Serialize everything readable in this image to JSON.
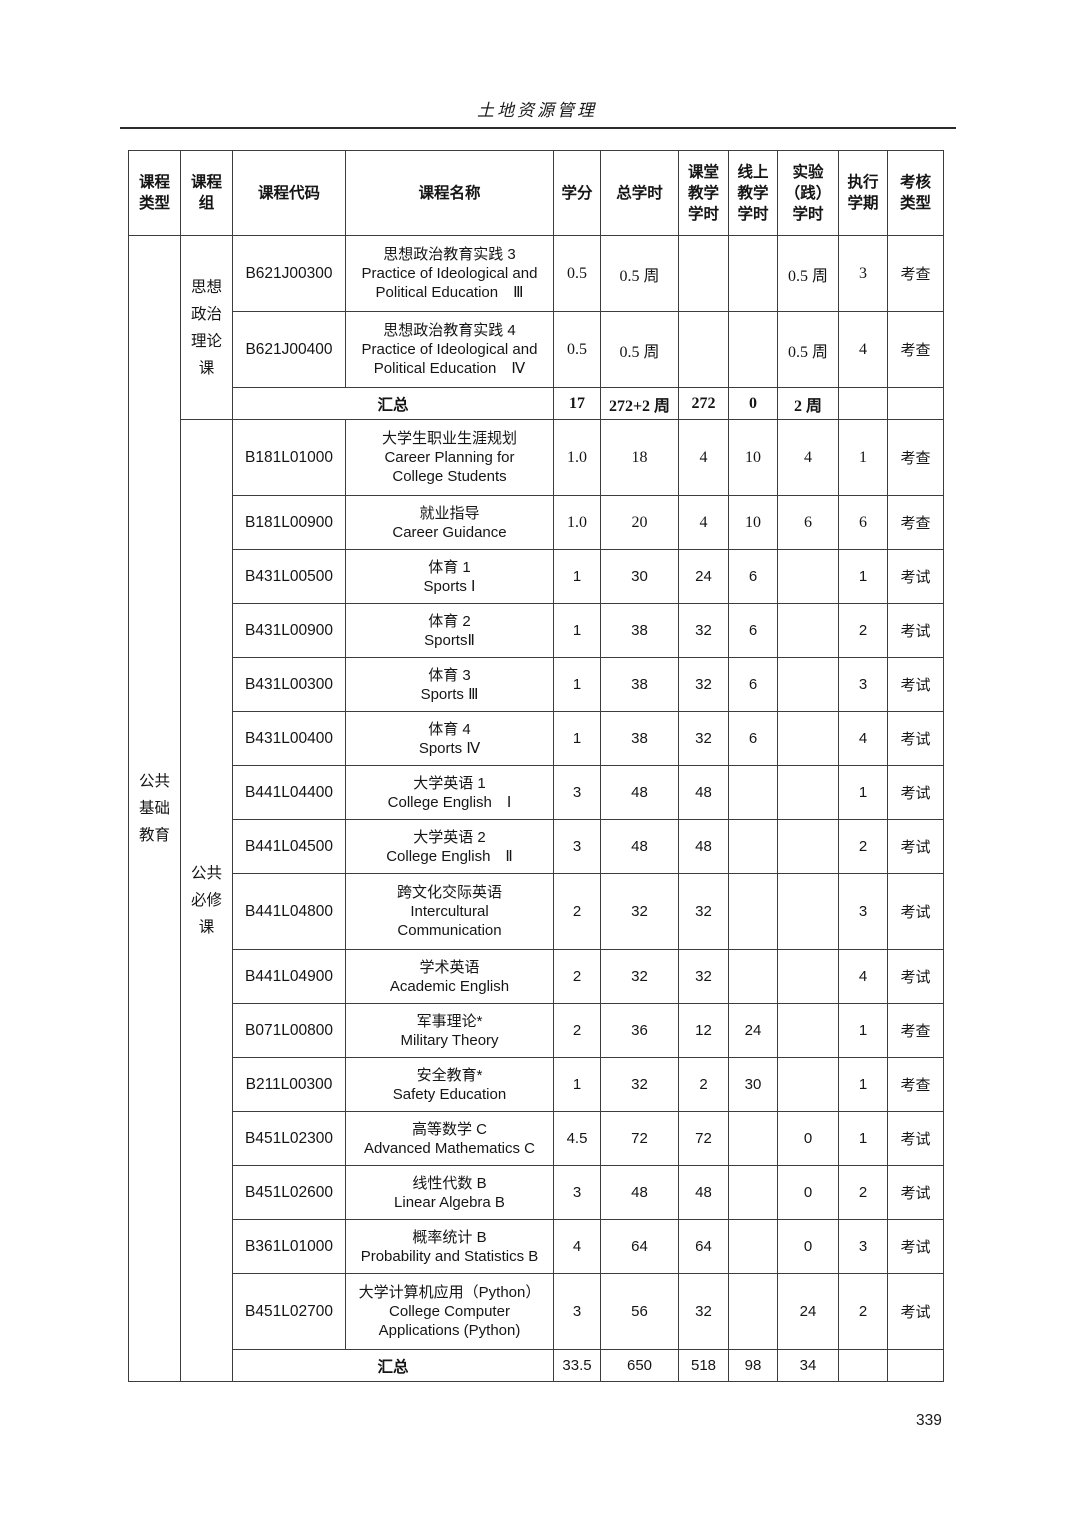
{
  "page": {
    "title": "土地资源管理",
    "number": "339"
  },
  "table": {
    "headers": [
      "课程\n类型",
      "课程\n组",
      "课程代码",
      "课程名称",
      "学分",
      "总学时",
      "课堂\n教学\n学时",
      "线上\n教学\n学时",
      "实验\n（践）\n学时",
      "执行\n学期",
      "考核\n类型"
    ],
    "course_type": "公共\n基础\n教育",
    "groups": [
      {
        "label": "思想\n政治\n理论\n课",
        "courses": [
          {
            "code": "B621J00300",
            "name": "思想政治教育实践 3\nPractice of Ideological and\nPolitical Education　Ⅲ",
            "credits": "0.5",
            "total_hours": "0.5 周",
            "classroom_hours": "",
            "online_hours": "",
            "practice_hours": "0.5 周",
            "semester": "3",
            "assessment": "考查"
          },
          {
            "code": "B621J00400",
            "name": "思想政治教育实践 4\nPractice of Ideological and\nPolitical Education　Ⅳ",
            "credits": "0.5",
            "total_hours": "0.5 周",
            "classroom_hours": "",
            "online_hours": "",
            "practice_hours": "0.5 周",
            "semester": "4",
            "assessment": "考查"
          }
        ],
        "summary": {
          "label": "汇总",
          "credits": "17",
          "total_hours": "272+2 周",
          "classroom_hours": "272",
          "online_hours": "0",
          "practice_hours": "2 周",
          "semester": "",
          "assessment": ""
        }
      },
      {
        "label": "公共\n必修\n课",
        "courses": [
          {
            "code": "B181L01000",
            "name": "大学生职业生涯规划\nCareer Planning for\nCollege Students",
            "credits": "1.0",
            "total_hours": "18",
            "classroom_hours": "4",
            "online_hours": "10",
            "practice_hours": "4",
            "semester": "1",
            "assessment": "考查"
          },
          {
            "code": "B181L00900",
            "name": "就业指导\nCareer Guidance",
            "credits": "1.0",
            "total_hours": "20",
            "classroom_hours": "4",
            "online_hours": "10",
            "practice_hours": "6",
            "semester": "6",
            "assessment": "考查"
          },
          {
            "code": "B431L00500",
            "name": "体育 1\nSports Ⅰ",
            "credits": "1",
            "total_hours": "30",
            "classroom_hours": "24",
            "online_hours": "6",
            "practice_hours": "",
            "semester": "1",
            "assessment": "考试"
          },
          {
            "code": "B431L00900",
            "name": "体育 2\nSportsⅡ",
            "credits": "1",
            "total_hours": "38",
            "classroom_hours": "32",
            "online_hours": "6",
            "practice_hours": "",
            "semester": "2",
            "assessment": "考试"
          },
          {
            "code": "B431L00300",
            "name": "体育 3\nSports Ⅲ",
            "credits": "1",
            "total_hours": "38",
            "classroom_hours": "32",
            "online_hours": "6",
            "practice_hours": "",
            "semester": "3",
            "assessment": "考试"
          },
          {
            "code": "B431L00400",
            "name": "体育 4\nSports Ⅳ",
            "credits": "1",
            "total_hours": "38",
            "classroom_hours": "32",
            "online_hours": "6",
            "practice_hours": "",
            "semester": "4",
            "assessment": "考试"
          },
          {
            "code": "B441L04400",
            "name": "大学英语 1\nCollege English　Ⅰ",
            "credits": "3",
            "total_hours": "48",
            "classroom_hours": "48",
            "online_hours": "",
            "practice_hours": "",
            "semester": "1",
            "assessment": "考试"
          },
          {
            "code": "B441L04500",
            "name": "大学英语 2\nCollege English　Ⅱ",
            "credits": "3",
            "total_hours": "48",
            "classroom_hours": "48",
            "online_hours": "",
            "practice_hours": "",
            "semester": "2",
            "assessment": "考试"
          },
          {
            "code": "B441L04800",
            "name": "跨文化交际英语\nIntercultural\nCommunication",
            "credits": "2",
            "total_hours": "32",
            "classroom_hours": "32",
            "online_hours": "",
            "practice_hours": "",
            "semester": "3",
            "assessment": "考试"
          },
          {
            "code": "B441L04900",
            "name": "学术英语\nAcademic English",
            "credits": "2",
            "total_hours": "32",
            "classroom_hours": "32",
            "online_hours": "",
            "practice_hours": "",
            "semester": "4",
            "assessment": "考试"
          },
          {
            "code": "B071L00800",
            "name": "军事理论*\nMilitary Theory",
            "credits": "2",
            "total_hours": "36",
            "classroom_hours": "12",
            "online_hours": "24",
            "practice_hours": "",
            "semester": "1",
            "assessment": "考查"
          },
          {
            "code": "B211L00300",
            "name": "安全教育*\nSafety Education",
            "credits": "1",
            "total_hours": "32",
            "classroom_hours": "2",
            "online_hours": "30",
            "practice_hours": "",
            "semester": "1",
            "assessment": "考查"
          },
          {
            "code": "B451L02300",
            "name": "高等数学 C\nAdvanced Mathematics C",
            "credits": "4.5",
            "total_hours": "72",
            "classroom_hours": "72",
            "online_hours": "",
            "practice_hours": "0",
            "semester": "1",
            "assessment": "考试"
          },
          {
            "code": "B451L02600",
            "name": "线性代数 B\nLinear Algebra B",
            "credits": "3",
            "total_hours": "48",
            "classroom_hours": "48",
            "online_hours": "",
            "practice_hours": "0",
            "semester": "2",
            "assessment": "考试"
          },
          {
            "code": "B361L01000",
            "name": "概率统计 B\nProbability and Statistics B",
            "credits": "4",
            "total_hours": "64",
            "classroom_hours": "64",
            "online_hours": "",
            "practice_hours": "0",
            "semester": "3",
            "assessment": "考试"
          },
          {
            "code": "B451L02700",
            "name": "大学计算机应用（Python）\nCollege Computer\nApplications (Python)",
            "credits": "3",
            "total_hours": "56",
            "classroom_hours": "32",
            "online_hours": "",
            "practice_hours": "24",
            "semester": "2",
            "assessment": "考试"
          }
        ],
        "summary": {
          "label": "汇总",
          "credits": "33.5",
          "total_hours": "650",
          "classroom_hours": "518",
          "online_hours": "98",
          "practice_hours": "34",
          "semester": "",
          "assessment": ""
        }
      }
    ]
  }
}
